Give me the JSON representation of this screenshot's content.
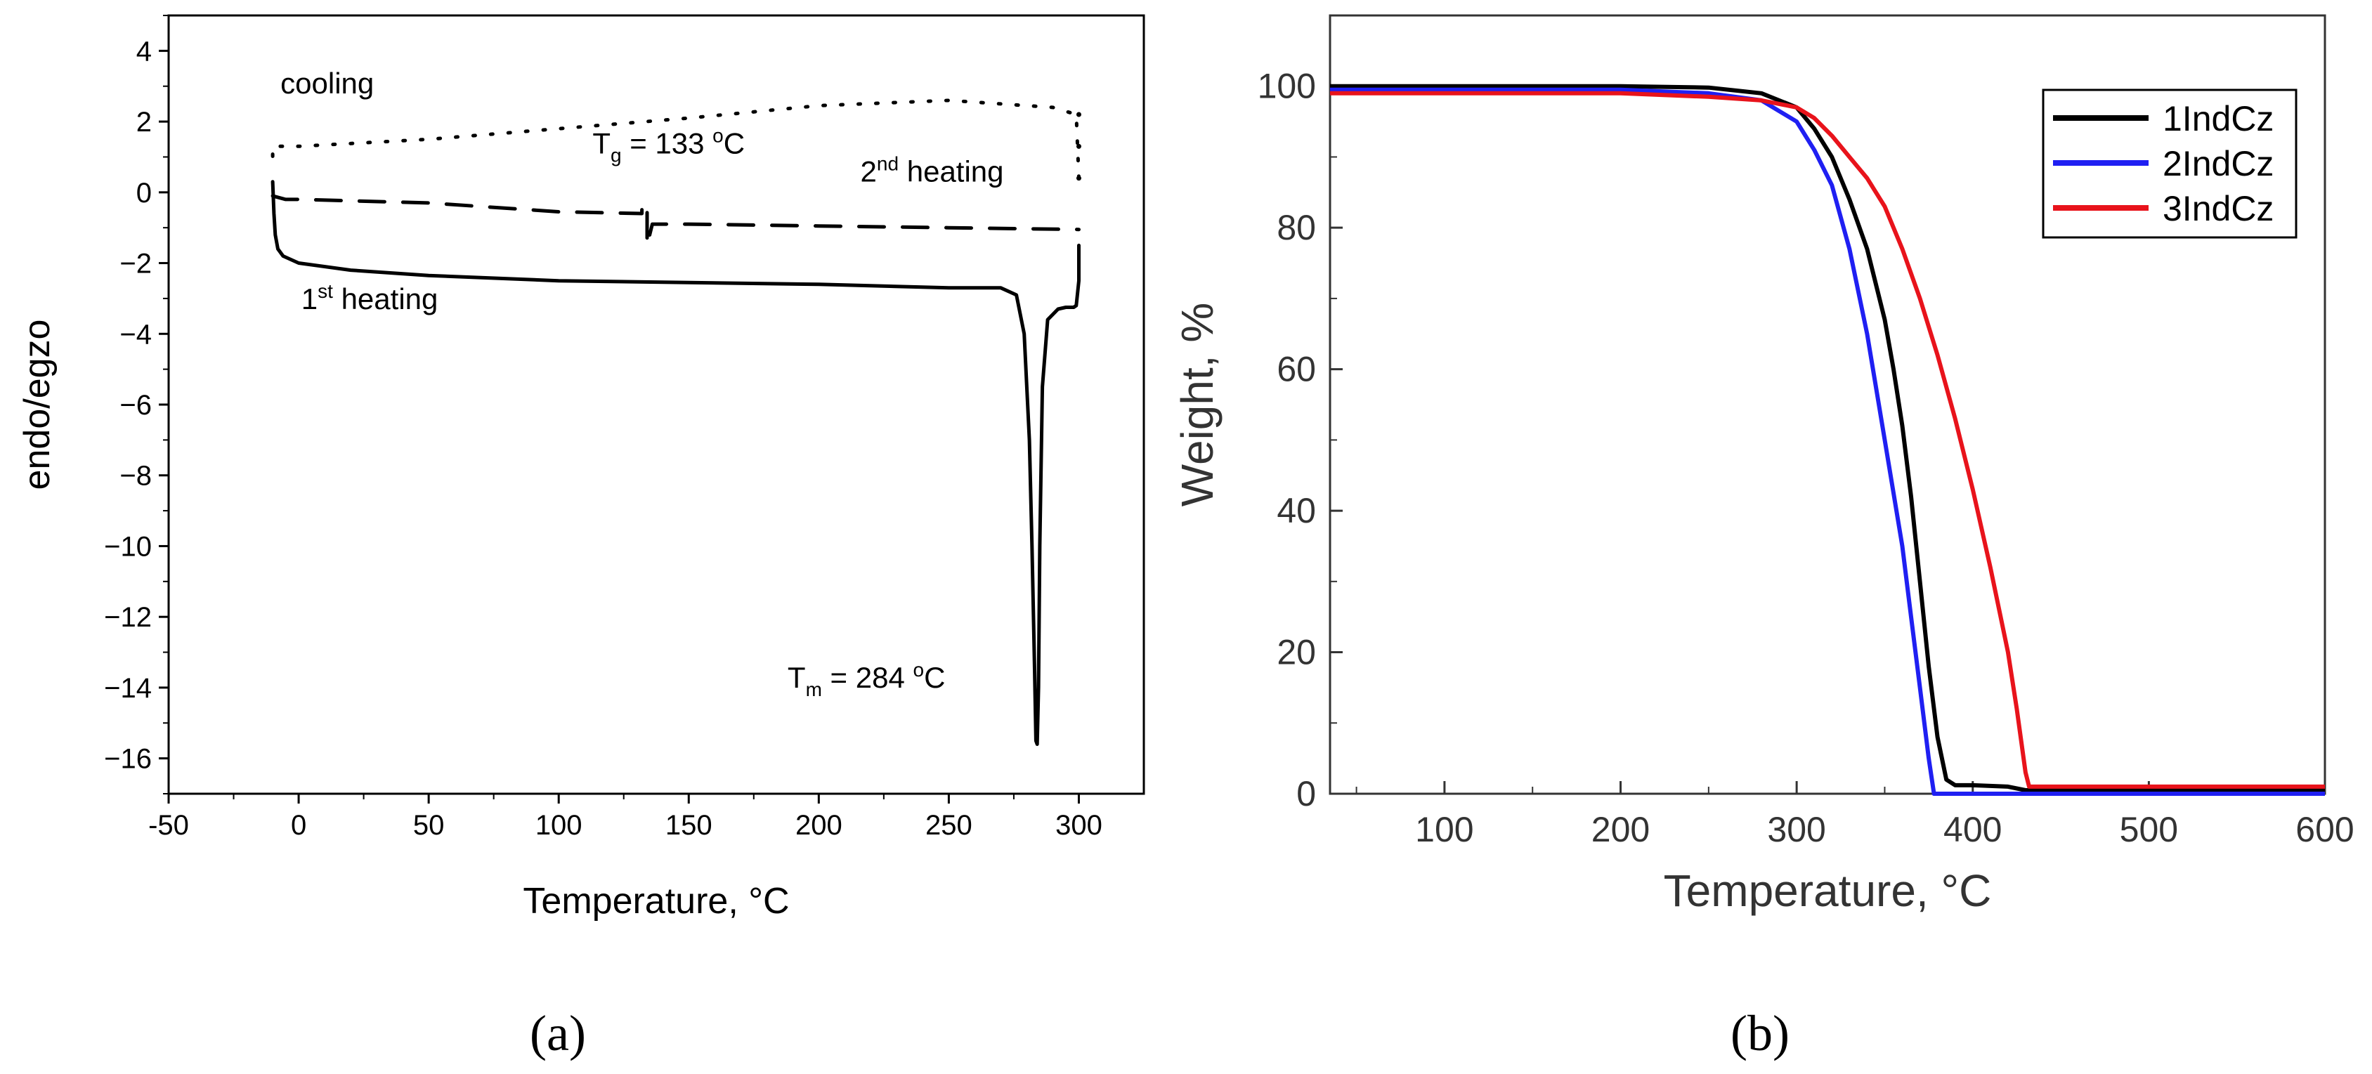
{
  "chart_data": [
    {
      "type": "line",
      "panel_label": "(a)",
      "title": "",
      "xlabel": "Temperature, ",
      "xlabel_unit": "°C",
      "ylabel": "endo/egzo",
      "xlim": [
        -50,
        325
      ],
      "ylim": [
        -17,
        5
      ],
      "xticks": [
        -50,
        0,
        50,
        100,
        150,
        200,
        250,
        300
      ],
      "xtick_labels": [
        "-50",
        "0",
        "50",
        "100",
        "150",
        "200",
        "250",
        "300"
      ],
      "yticks": [
        4,
        2,
        0,
        -2,
        -4,
        -6,
        -8,
        -10,
        -12,
        -14,
        -16
      ],
      "ytick_labels": [
        "4",
        "2",
        "0",
        "−2",
        "−4",
        "−6",
        "−8",
        "−10",
        "−12",
        "−14",
        "−16"
      ],
      "series": [
        {
          "name": "1st heating",
          "style": "solid",
          "x": [
            -10,
            -9.5,
            -9,
            -8,
            -6,
            -3,
            0,
            20,
            50,
            100,
            150,
            200,
            250,
            270,
            276,
            279,
            281,
            282,
            283,
            283.5,
            284,
            284.5,
            285,
            286,
            288,
            292,
            295,
            298,
            299,
            300,
            300
          ],
          "y": [
            0.3,
            -0.6,
            -1.2,
            -1.6,
            -1.8,
            -1.9,
            -2.0,
            -2.2,
            -2.35,
            -2.5,
            -2.55,
            -2.6,
            -2.7,
            -2.7,
            -2.9,
            -4,
            -7,
            -10,
            -13.5,
            -15.5,
            -15.6,
            -14,
            -10,
            -5.5,
            -3.6,
            -3.3,
            -3.25,
            -3.25,
            -3.2,
            -2.5,
            -1.5
          ]
        },
        {
          "name": "cooling",
          "style": "dotted",
          "x": [
            300,
            299,
            290,
            270,
            250,
            200,
            150,
            100,
            50,
            0,
            -8,
            -10,
            -10
          ],
          "y": [
            0.4,
            2.2,
            2.4,
            2.5,
            2.6,
            2.45,
            2.1,
            1.8,
            1.5,
            1.3,
            1.3,
            1.3,
            0.6
          ],
          "marker_points": [
            [
              300,
              0.4
            ],
            [
              300,
              1.3
            ],
            [
              300,
              2.2
            ]
          ]
        },
        {
          "name": "2nd heating",
          "style": "dashed",
          "x": [
            -10,
            -5,
            0,
            50,
            100,
            132,
            132,
            134,
            134,
            136,
            150,
            200,
            250,
            300
          ],
          "y": [
            -0.1,
            -0.2,
            -0.2,
            -0.3,
            -0.55,
            -0.6,
            -0.35,
            -0.35,
            -1.5,
            -0.9,
            -0.9,
            -0.95,
            -1.0,
            -1.05
          ]
        }
      ],
      "annotations": [
        {
          "id": "cooling",
          "text": "cooling",
          "x": -7,
          "y": 2.8
        },
        {
          "id": "tg",
          "base": "T",
          "sub": "g",
          "rest": " = 133 ",
          "sup": "o",
          "unit": "C",
          "x": 113,
          "y": 1.1
        },
        {
          "id": "heat2",
          "base": "2",
          "sup": "nd",
          "rest": " heating",
          "x": 216,
          "y": 0.3
        },
        {
          "id": "heat1",
          "base": "1",
          "sup": "st",
          "rest": " heating",
          "x": 1,
          "y": -3.3
        },
        {
          "id": "tm",
          "base": "T",
          "sub": "m",
          "rest": " = 284 ",
          "sup": "o",
          "unit": "C",
          "x": 188,
          "y": -14.0
        }
      ]
    },
    {
      "type": "line",
      "panel_label": "(b)",
      "title": "",
      "xlabel": "Temperature, ",
      "xlabel_unit": "°C",
      "ylabel": "Weight, %",
      "xlim": [
        35,
        600
      ],
      "ylim": [
        0,
        110
      ],
      "xticks": [
        100,
        200,
        300,
        400,
        500,
        600
      ],
      "xtick_labels": [
        "100",
        "200",
        "300",
        "400",
        "500",
        "600"
      ],
      "yticks": [
        0,
        20,
        40,
        60,
        80,
        100
      ],
      "ytick_labels": [
        "0",
        "20",
        "40",
        "60",
        "80",
        "100"
      ],
      "legend": "top-right",
      "series": [
        {
          "name": "1IndCz",
          "color": "#000000",
          "x": [
            35,
            100,
            200,
            250,
            280,
            300,
            310,
            320,
            330,
            340,
            350,
            355,
            360,
            365,
            370,
            375,
            380,
            385,
            390,
            400,
            420,
            430,
            600
          ],
          "y": [
            100,
            100,
            100,
            99.8,
            99,
            97,
            94,
            90,
            84,
            77,
            67,
            60,
            52,
            42,
            30,
            18,
            8,
            2,
            1.2,
            1.2,
            1.0,
            0.5,
            0.5
          ]
        },
        {
          "name": "2IndCz",
          "color": "#1f1ff2",
          "x": [
            35,
            100,
            200,
            250,
            280,
            300,
            310,
            320,
            330,
            340,
            350,
            360,
            365,
            370,
            375,
            378,
            380,
            600
          ],
          "y": [
            99.5,
            99.5,
            99.5,
            99,
            98,
            95,
            91,
            86,
            77,
            65,
            50,
            35,
            25,
            15,
            5,
            0,
            0,
            0
          ]
        },
        {
          "name": "3IndCz",
          "color": "#e8131b",
          "x": [
            35,
            100,
            200,
            250,
            280,
            300,
            310,
            320,
            330,
            340,
            350,
            360,
            370,
            380,
            390,
            400,
            410,
            420,
            425,
            430,
            432,
            600
          ],
          "y": [
            99,
            99,
            99,
            98.5,
            98,
            97,
            95.5,
            93,
            90,
            87,
            83,
            77,
            70,
            62,
            53,
            43,
            32,
            20,
            12,
            3,
            1,
            1
          ]
        }
      ]
    }
  ]
}
